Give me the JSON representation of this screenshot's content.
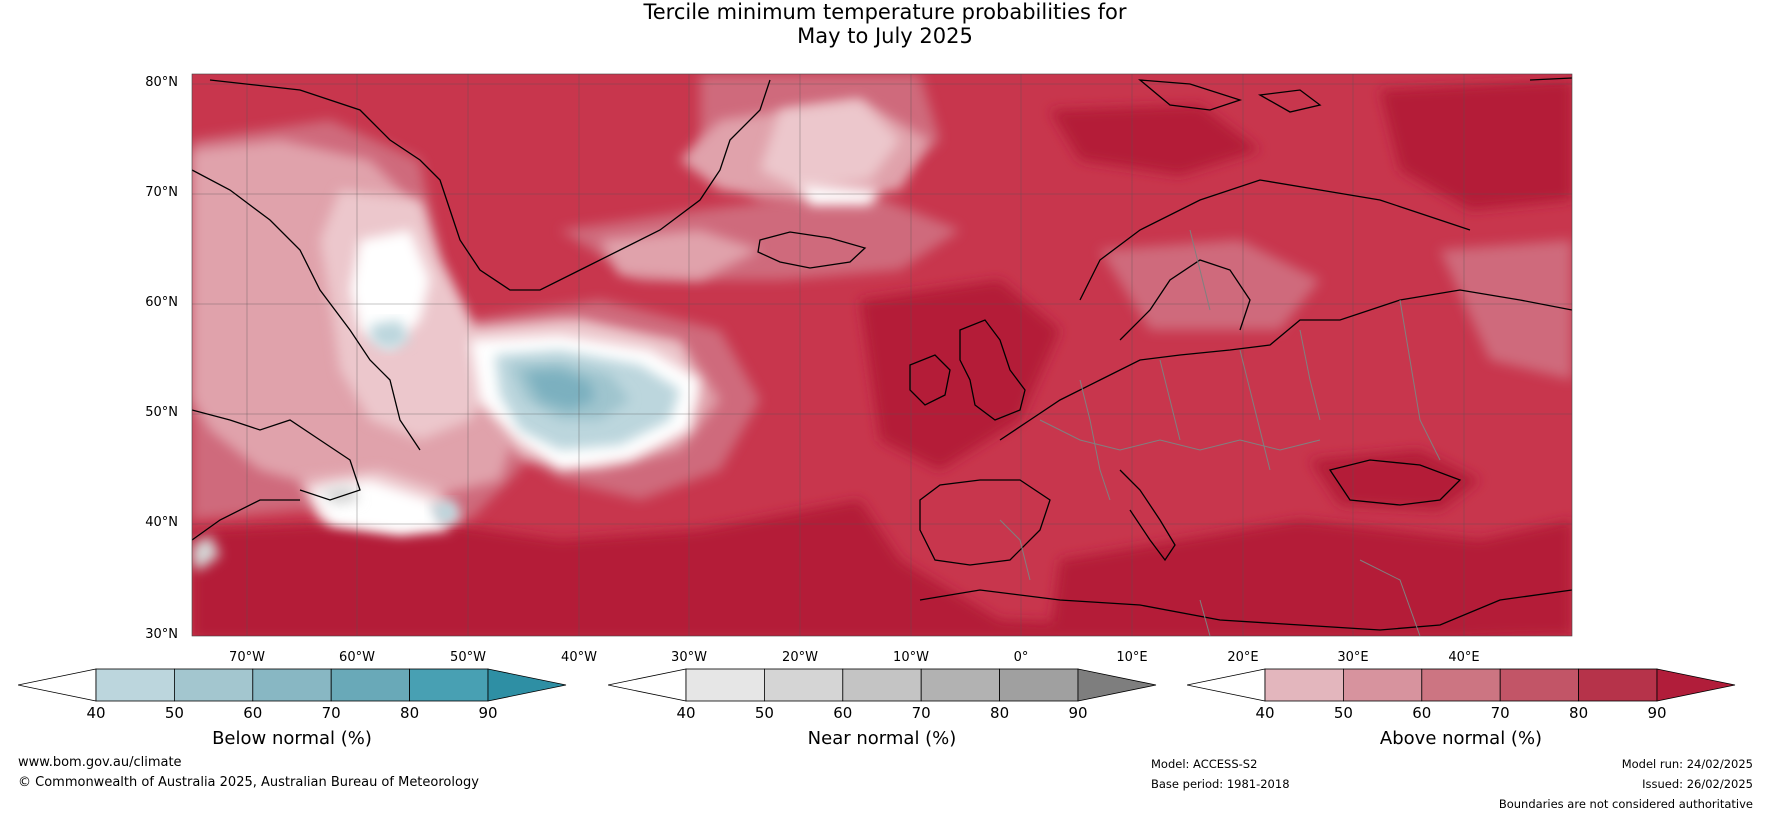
{
  "title": {
    "line1": "Tercile minimum temperature probabilities for",
    "line2": "May to July 2025"
  },
  "map": {
    "lat_labels": [
      "80°N",
      "70°N",
      "60°N",
      "50°N",
      "40°N",
      "30°N"
    ],
    "lon_labels": [
      "70°W",
      "60°W",
      "50°W",
      "40°W",
      "30°W",
      "20°W",
      "10°W",
      "0°",
      "10°E",
      "20°E",
      "30°E",
      "40°E"
    ],
    "colors": {
      "ocean_base": "#c8364d",
      "dark_red": "#b41d39",
      "mid_red": "#cf6b7b",
      "light_red": "#e0a2ab",
      "pale_red": "#ecc7cc",
      "white": "#ffffff",
      "blue_light": "#bcd6dd",
      "blue_mid": "#9fc4ce",
      "blue_dark": "#7bb0bf",
      "grey_light": "#e1e1e1",
      "coast": "#000000",
      "borders": "#808080"
    }
  },
  "colorbars": [
    {
      "label": "Below normal (%)",
      "ticks": [
        "40",
        "50",
        "60",
        "70",
        "80",
        "90"
      ],
      "colors": [
        "#ffffff",
        "#bcd6dd",
        "#a3c6cf",
        "#88b7c3",
        "#69a9b8",
        "#48a0b3",
        "#2e8fa4"
      ]
    },
    {
      "label": "Near normal (%)",
      "ticks": [
        "40",
        "50",
        "60",
        "70",
        "80",
        "90"
      ],
      "colors": [
        "#ffffff",
        "#e6e6e6",
        "#d5d5d5",
        "#c4c4c4",
        "#b2b2b2",
        "#a0a0a0",
        "#7e7e7e"
      ]
    },
    {
      "label": "Above normal (%)",
      "ticks": [
        "40",
        "50",
        "60",
        "70",
        "80",
        "90"
      ],
      "colors": [
        "#ffffff",
        "#e3b6bd",
        "#d7939e",
        "#cc7582",
        "#c25567",
        "#b6334a",
        "#b11d3a"
      ]
    }
  ],
  "footer": {
    "website": "www.bom.gov.au/climate",
    "copyright": "© Commonwealth of Australia 2025, Australian Bureau of Meteorology",
    "model": "Model: ACCESS-S2",
    "base_period": "Base period: 1981-2018",
    "model_run": "Model run: 24/02/2025",
    "issued": "Issued: 26/02/2025",
    "disclaimer": "Boundaries are not considered authoritative"
  }
}
